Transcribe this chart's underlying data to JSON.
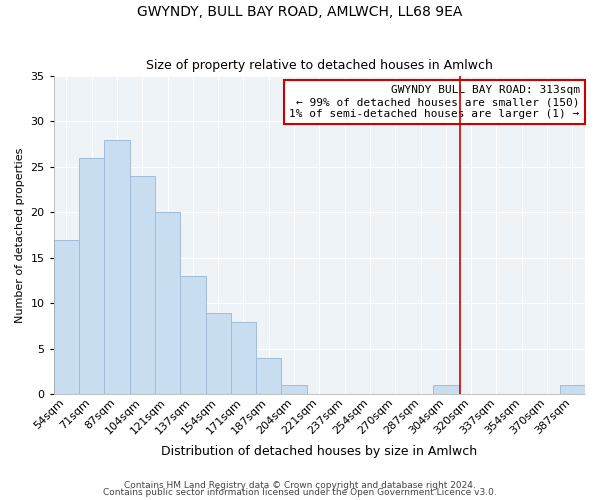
{
  "title": "GWYNDY, BULL BAY ROAD, AMLWCH, LL68 9EA",
  "subtitle": "Size of property relative to detached houses in Amlwch",
  "xlabel": "Distribution of detached houses by size in Amlwch",
  "ylabel": "Number of detached properties",
  "bin_labels": [
    "54sqm",
    "71sqm",
    "87sqm",
    "104sqm",
    "121sqm",
    "137sqm",
    "154sqm",
    "171sqm",
    "187sqm",
    "204sqm",
    "221sqm",
    "237sqm",
    "254sqm",
    "270sqm",
    "287sqm",
    "304sqm",
    "320sqm",
    "337sqm",
    "354sqm",
    "370sqm",
    "387sqm"
  ],
  "bar_values": [
    17,
    26,
    28,
    24,
    20,
    13,
    9,
    8,
    4,
    1,
    0,
    0,
    0,
    0,
    0,
    1,
    0,
    0,
    0,
    0,
    1
  ],
  "bar_color": "#c8ddf0",
  "bar_edge_color": "#a0bcd8",
  "vline_color": "#cc0000",
  "vline_x_index": 15.56,
  "annotation_title": "GWYNDY BULL BAY ROAD: 313sqm",
  "annotation_line1": "← 99% of detached houses are smaller (150)",
  "annotation_line2": "1% of semi-detached houses are larger (1) →",
  "annotation_box_color": "#ffffff",
  "annotation_box_edge": "#cc0000",
  "ylim": [
    0,
    35
  ],
  "yticks": [
    0,
    5,
    10,
    15,
    20,
    25,
    30,
    35
  ],
  "footer1": "Contains HM Land Registry data © Crown copyright and database right 2024.",
  "footer2": "Contains public sector information licensed under the Open Government Licence v3.0.",
  "background_color": "#ffffff",
  "plot_bg_color": "#eef3f8",
  "grid_color": "#ffffff",
  "title_fontsize": 10,
  "subtitle_fontsize": 9,
  "xlabel_fontsize": 9,
  "ylabel_fontsize": 8,
  "tick_fontsize": 8,
  "annotation_fontsize": 8,
  "footer_fontsize": 6.5
}
